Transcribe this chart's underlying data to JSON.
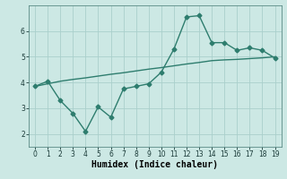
{
  "x": [
    0,
    1,
    2,
    3,
    4,
    5,
    6,
    7,
    8,
    9,
    10,
    11,
    12,
    13,
    14,
    15,
    16,
    17,
    18,
    19
  ],
  "y_line": [
    3.85,
    4.05,
    3.3,
    2.8,
    2.1,
    3.05,
    2.65,
    3.75,
    3.85,
    3.95,
    4.4,
    5.3,
    6.55,
    6.6,
    5.55,
    5.55,
    5.25,
    5.35,
    5.25,
    4.95
  ],
  "y_trend": [
    3.85,
    3.95,
    4.05,
    4.12,
    4.18,
    4.25,
    4.32,
    4.38,
    4.45,
    4.52,
    4.58,
    4.65,
    4.72,
    4.78,
    4.85,
    4.88,
    4.9,
    4.93,
    4.96,
    5.0
  ],
  "line_color": "#2e7d6e",
  "trend_color": "#2e7d6e",
  "bg_color": "#cce8e4",
  "grid_color": "#aacfcc",
  "xlabel": "Humidex (Indice chaleur)",
  "ylim": [
    1.5,
    7.0
  ],
  "xlim": [
    -0.5,
    19.5
  ],
  "yticks": [
    2,
    3,
    4,
    5,
    6
  ],
  "xticks": [
    0,
    1,
    2,
    3,
    4,
    5,
    6,
    7,
    8,
    9,
    10,
    11,
    12,
    13,
    14,
    15,
    16,
    17,
    18,
    19
  ],
  "marker": "D",
  "marker_size": 2.5,
  "line_width": 1.0,
  "xlabel_fontsize": 7,
  "tick_fontsize": 5.5
}
